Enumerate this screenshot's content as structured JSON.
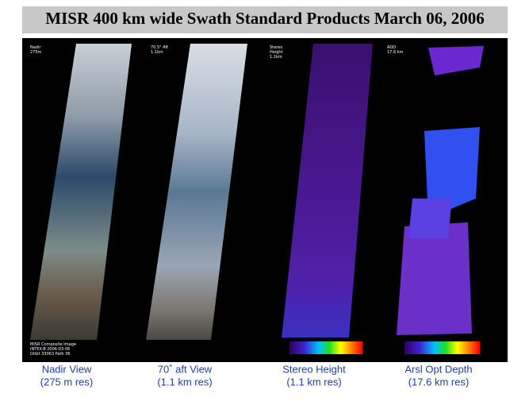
{
  "title": "MISR 400 km wide Swath Standard Products  March 06, 2006",
  "panels": [
    {
      "overlay": [
        "Nadir",
        "275m"
      ],
      "caption": [
        "Nadir View",
        "(275 m res)"
      ]
    },
    {
      "overlay": [
        "70.5° Aft",
        "1.1km"
      ],
      "caption": [
        "70˚ aft View",
        "(1.1 km res)"
      ]
    },
    {
      "overlay": [
        "Stereo",
        "Height",
        "1.1km"
      ],
      "caption": [
        "Stereo Height",
        "(1.1 km res)"
      ]
    },
    {
      "overlay": [
        "AOD",
        "17.6 km"
      ],
      "caption": [
        "Arsl Opt Depth",
        "(17.6 km res)"
      ]
    }
  ],
  "credit": [
    "MISR Composite Image",
    "INTEX-B 2006-03-06",
    "Orbit 33063 Path 36"
  ]
}
